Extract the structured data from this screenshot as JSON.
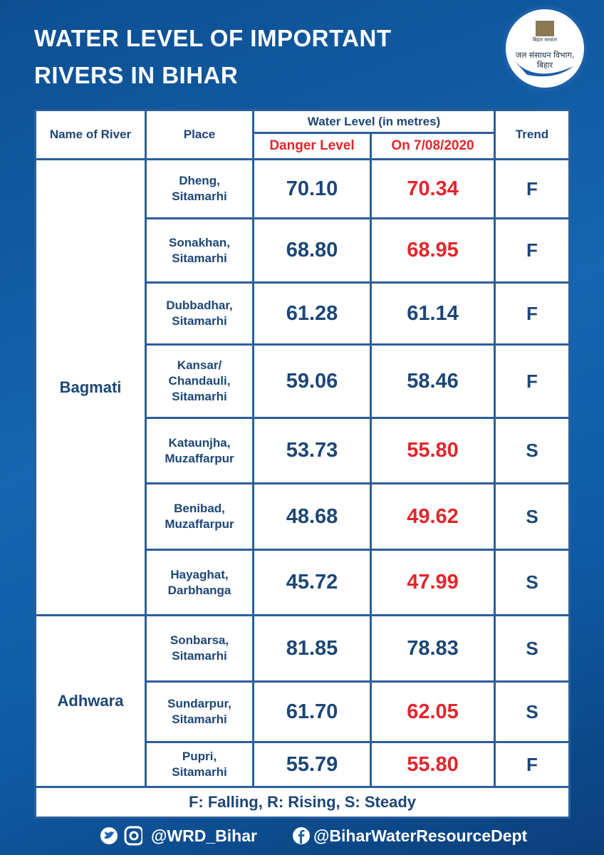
{
  "header": {
    "title_lines": [
      "WATER LEVEL OF IMPORTANT",
      "RIVERS IN BIHAR"
    ],
    "logo": {
      "top_text": "बिहार सरकार",
      "dept_lines": [
        "जल संसाधन विभाग,",
        "बिहार"
      ]
    }
  },
  "table": {
    "columns": {
      "river": "Name of River",
      "place": "Place",
      "group": "Water  Level (in metres)",
      "danger": "Danger Level",
      "current": "On 7/08/2020",
      "trend": "Trend"
    },
    "rivers": [
      {
        "name": "Bagmati",
        "stations": [
          {
            "place": [
              "Dheng,",
              "Sitamarhi"
            ],
            "danger": "70.10",
            "current": "70.34",
            "current_color": "#e3262b",
            "trend": "F"
          },
          {
            "place": [
              "Sonakhan,",
              "Sitamarhi"
            ],
            "danger": "68.80",
            "current": "68.95",
            "current_color": "#e3262b",
            "trend": "F"
          },
          {
            "place": [
              "Dubbadhar,",
              "Sitamarhi"
            ],
            "danger": "61.28",
            "current": "61.14",
            "current_color": "#1d4677",
            "trend": "F"
          },
          {
            "place": [
              "Kansar/",
              "Chandauli,",
              "Sitamarhi"
            ],
            "danger": "59.06",
            "current": "58.46",
            "current_color": "#1d4677",
            "trend": "F"
          },
          {
            "place": [
              "Kataunjha,",
              "Muzaffarpur"
            ],
            "danger": "53.73",
            "current": "55.80",
            "current_color": "#e3262b",
            "trend": "S"
          },
          {
            "place": [
              "Benibad,",
              "Muzaffarpur"
            ],
            "danger": "48.68",
            "current": "49.62",
            "current_color": "#e3262b",
            "trend": "S"
          },
          {
            "place": [
              "Hayaghat,",
              "Darbhanga"
            ],
            "danger": "45.72",
            "current": "47.99",
            "current_color": "#e3262b",
            "trend": "S"
          }
        ]
      },
      {
        "name": "Adhwara",
        "stations": [
          {
            "place": [
              "Sonbarsa,",
              "Sitamarhi"
            ],
            "danger": "81.85",
            "current": "78.83",
            "current_color": "#1d4677",
            "trend": "S"
          },
          {
            "place": [
              "Sundarpur,",
              "Sitamarhi"
            ],
            "danger": "61.70",
            "current": "62.05",
            "current_color": "#e3262b",
            "trend": "S"
          },
          {
            "place": [
              "Pupri,",
              "Sitamarhi"
            ],
            "danger": "55.79",
            "current": "55.80",
            "current_color": "#e3262b",
            "trend": "F"
          }
        ]
      }
    ],
    "legend": "F: Falling, R: Rising, S: Steady"
  },
  "footer": {
    "twitter": "@WRD_Bihar",
    "facebook": "@BiharWaterResourceDept"
  }
}
